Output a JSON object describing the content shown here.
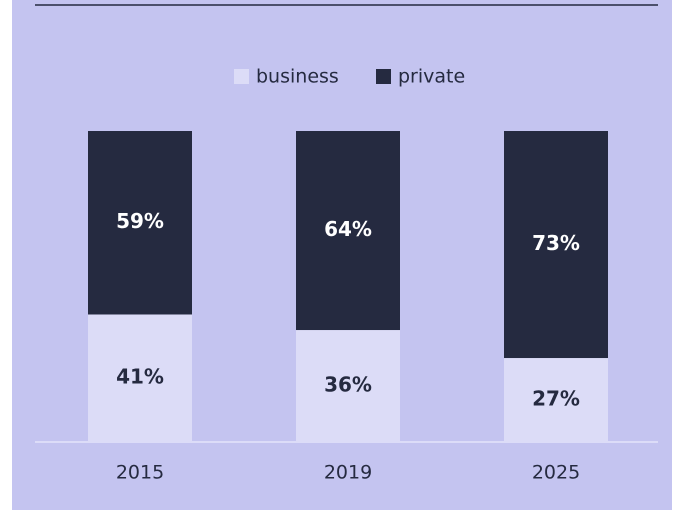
{
  "chart_data": {
    "type": "stacked_bar",
    "categories": [
      "2015",
      "2019",
      "2025"
    ],
    "series": [
      {
        "name": "business",
        "color": "#dcdcf7",
        "label_color": "#252a40",
        "values": [
          41,
          36,
          27
        ],
        "value_labels": [
          "41%",
          "36%",
          "27%"
        ]
      },
      {
        "name": "private",
        "color": "#252a40",
        "label_color": "#ffffff",
        "values": [
          59,
          64,
          73
        ],
        "value_labels": [
          "59%",
          "64%",
          "73%"
        ]
      }
    ],
    "ylim": [
      0,
      100
    ],
    "legend": "top"
  }
}
